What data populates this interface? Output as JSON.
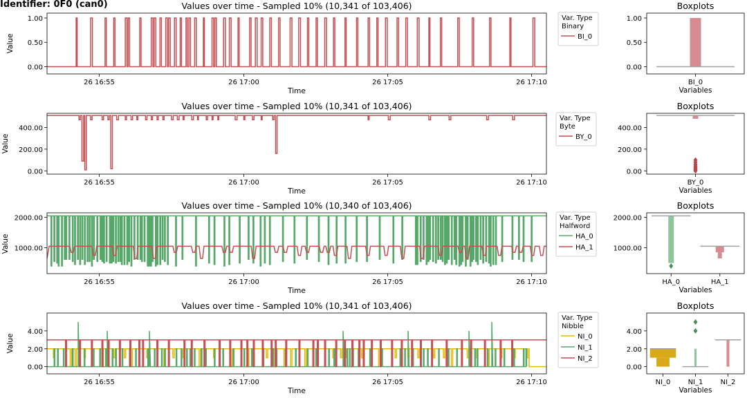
{
  "page_title": "Identifier: 0F0 (can0)",
  "colors": {
    "red": "#c44e52",
    "green": "#55a868",
    "gold": "#e6b800",
    "gray": "#a0a0a0",
    "red_box": "#d58b8f",
    "green_box": "#8fc59c",
    "gold_box": "#d9a91a"
  },
  "chart_data": [
    {
      "type": "line",
      "title": "Values over time - Sampled 10% (10,341 of 103,406)",
      "xlabel": "Time",
      "ylabel": "Value",
      "xticks": [
        "26 16:55",
        "26 17:00",
        "26 17:05",
        "26 17:10"
      ],
      "yticks": [
        "0.00",
        "0.50",
        "1.00"
      ],
      "ylim": [
        -0.15,
        1.1
      ],
      "legend": {
        "title": [
          "Var. Type",
          "Binary"
        ],
        "entries": [
          "BI_0"
        ],
        "placement": "outside-right"
      },
      "series": [
        {
          "name": "BI_0",
          "color": "red",
          "baseline": 0,
          "spike_to": 1,
          "spike_minutes": [
            -0.8,
            -0.3,
            0.2,
            0.5,
            0.9,
            1.0,
            1.4,
            1.8,
            1.9,
            2.1,
            2.3,
            2.4,
            2.6,
            2.8,
            3.0,
            3.1,
            3.3,
            3.6,
            3.9,
            4.0,
            4.3,
            4.5,
            4.8,
            5.2,
            5.4,
            5.6,
            5.9,
            6.2,
            6.6,
            6.9,
            7.2,
            7.5,
            7.8,
            8.1,
            8.5,
            8.9,
            9.3,
            9.6,
            9.9,
            10.3,
            10.6,
            11.0,
            11.4,
            11.8,
            12.4,
            12.9,
            13.5,
            14.2,
            15.0,
            15.7,
            16.1,
            16.6,
            17.0,
            17.5,
            17.8,
            18.1,
            18.5,
            18.8,
            19.2,
            19.4,
            19.6,
            20.2,
            20.9,
            21.0,
            21.1
          ]
        }
      ],
      "boxplot": {
        "title": "Boxplots",
        "xlabel": "Variables",
        "yticks": [
          "0.00",
          "0.50",
          "1.00"
        ],
        "categories": [
          "BI_0"
        ],
        "boxes": [
          {
            "name": "BI_0",
            "q1": 0,
            "q3": 1,
            "median": 0
          }
        ]
      }
    },
    {
      "type": "line",
      "title": "Values over time - Sampled 10% (10,341 of 103,406)",
      "xlabel": "Time",
      "ylabel": "Value",
      "xticks": [
        "26 16:55",
        "26 17:00",
        "26 17:05",
        "26 17:10"
      ],
      "yticks": [
        "0.00",
        "200.00",
        "400.00"
      ],
      "ylim": [
        -30,
        530
      ],
      "legend": {
        "title": [
          "Var. Type",
          "Byte"
        ],
        "entries": [
          "BY_0"
        ],
        "placement": "outside-right"
      },
      "series": [
        {
          "name": "BY_0",
          "color": "red",
          "baseline": 510,
          "dips": [
            [
              -0.7,
              470
            ],
            [
              -0.6,
              90
            ],
            [
              -0.5,
              10
            ],
            [
              -0.3,
              470
            ],
            [
              0.1,
              470
            ],
            [
              0.3,
              470
            ],
            [
              0.4,
              20
            ],
            [
              0.6,
              470
            ],
            [
              0.9,
              470
            ],
            [
              1.1,
              470
            ],
            [
              1.3,
              470
            ],
            [
              1.6,
              470
            ],
            [
              1.8,
              470
            ],
            [
              2.0,
              470
            ],
            [
              2.2,
              470
            ],
            [
              2.5,
              470
            ],
            [
              2.7,
              470
            ],
            [
              2.9,
              470
            ],
            [
              3.2,
              470
            ],
            [
              3.4,
              470
            ],
            [
              3.7,
              470
            ],
            [
              3.9,
              470
            ],
            [
              4.1,
              470
            ],
            [
              4.7,
              470
            ],
            [
              5.0,
              470
            ],
            [
              5.3,
              470
            ],
            [
              5.6,
              470
            ],
            [
              6.0,
              470
            ],
            [
              6.1,
              160
            ],
            [
              9.3,
              470
            ],
            [
              10.0,
              470
            ],
            [
              11.4,
              470
            ],
            [
              12.1,
              470
            ],
            [
              13.4,
              470
            ],
            [
              14.3,
              470
            ],
            [
              16.0,
              470
            ],
            [
              16.9,
              470
            ],
            [
              17.6,
              100
            ],
            [
              18.3,
              470
            ],
            [
              18.9,
              470
            ],
            [
              19.6,
              470
            ],
            [
              20.3,
              470
            ],
            [
              20.9,
              470
            ],
            [
              21.7,
              470
            ],
            [
              22.6,
              470
            ],
            [
              23.8,
              470
            ],
            [
              24.9,
              470
            ],
            [
              26.5,
              470
            ],
            [
              27.3,
              470
            ],
            [
              28.1,
              470
            ],
            [
              29.5,
              470
            ],
            [
              30.3,
              470
            ],
            [
              31.1,
              470
            ],
            [
              31.9,
              470
            ],
            [
              32.4,
              470
            ],
            [
              32.7,
              470
            ],
            [
              33.2,
              470
            ],
            [
              33.6,
              470
            ],
            [
              34.3,
              470
            ],
            [
              34.6,
              470
            ],
            [
              34.9,
              470
            ],
            [
              35.3,
              470
            ],
            [
              35.7,
              470
            ],
            [
              36.1,
              470
            ],
            [
              36.4,
              470
            ],
            [
              36.7,
              470
            ]
          ]
        }
      ],
      "boxplot": {
        "title": "Boxplots",
        "xlabel": "Variables",
        "yticks": [
          "0.00",
          "200.00",
          "400.00"
        ],
        "categories": [
          "BY_0"
        ],
        "boxes": [
          {
            "name": "BY_0",
            "q1": 502,
            "q3": 510,
            "median": 510,
            "whisker_low": 480,
            "outliers": [
              0,
              10,
              20,
              30,
              45,
              60,
              80,
              100
            ]
          }
        ]
      }
    },
    {
      "type": "line",
      "title": "Values over time - Sampled 10% (10,340 of 103,406)",
      "xlabel": "Time",
      "ylabel": "Value",
      "xticks": [
        "26 16:55",
        "26 17:00",
        "26 17:05",
        "26 17:10"
      ],
      "yticks": [
        "1000.00",
        "2000.00"
      ],
      "ylim": [
        150,
        2150
      ],
      "legend": {
        "title": [
          "Var. Type",
          "Halfword"
        ],
        "entries": [
          "HA_0",
          "HA_1"
        ],
        "placement": "outside-right"
      },
      "series": [
        {
          "name": "HA_0",
          "color": "green",
          "baseline": 2050
        },
        {
          "name": "HA_1",
          "color": "red",
          "baseline": 1050
        }
      ],
      "boxplot": {
        "title": "Boxplots",
        "xlabel": "Variables",
        "yticks": [
          "1000.00",
          "2000.00"
        ],
        "categories": [
          "HA_0",
          "HA_1"
        ],
        "boxes": [
          {
            "name": "HA_0",
            "q1": 500,
            "q3": 2050,
            "median": 2050,
            "outliers": [
              400
            ]
          },
          {
            "name": "HA_1",
            "q1": 850,
            "q3": 1050,
            "median": 1050,
            "whisker_low": 650
          }
        ]
      }
    },
    {
      "type": "line",
      "title": "Values over time - Sampled 10% (10,341 of 103,406)",
      "xlabel": "Time",
      "ylabel": "Value",
      "xticks": [
        "26 16:55",
        "26 17:00",
        "26 17:05",
        "26 17:10"
      ],
      "yticks": [
        "0.00",
        "2.00",
        "4.00"
      ],
      "ylim": [
        -0.8,
        6
      ],
      "legend": {
        "title": [
          "Var. Type",
          "Nibble"
        ],
        "entries": [
          "NI_0",
          "NI_1",
          "NI_2"
        ],
        "placement": "outside-right"
      },
      "series": [
        {
          "name": "NI_0",
          "color": "gold",
          "baseline": 2
        },
        {
          "name": "NI_1",
          "color": "green",
          "baseline": 0
        },
        {
          "name": "NI_2",
          "color": "red",
          "baseline": 3
        }
      ],
      "boxplot": {
        "title": "Boxplots",
        "xlabel": "Variables",
        "yticks": [
          "0.00",
          "2.00",
          "4.00"
        ],
        "categories": [
          "NI_0",
          "NI_1",
          "NI_2"
        ],
        "boxes": [
          {
            "name": "NI_0",
            "q1": 1,
            "q3": 2,
            "median": 2,
            "whisker_low": 0
          },
          {
            "name": "NI_1",
            "q1": 0,
            "q3": 0,
            "median": 0,
            "whisker_high": 2,
            "outliers": [
              4,
              5
            ]
          },
          {
            "name": "NI_2",
            "q1": 3,
            "q3": 3,
            "median": 3,
            "whisker_low": 0
          }
        ]
      }
    }
  ]
}
